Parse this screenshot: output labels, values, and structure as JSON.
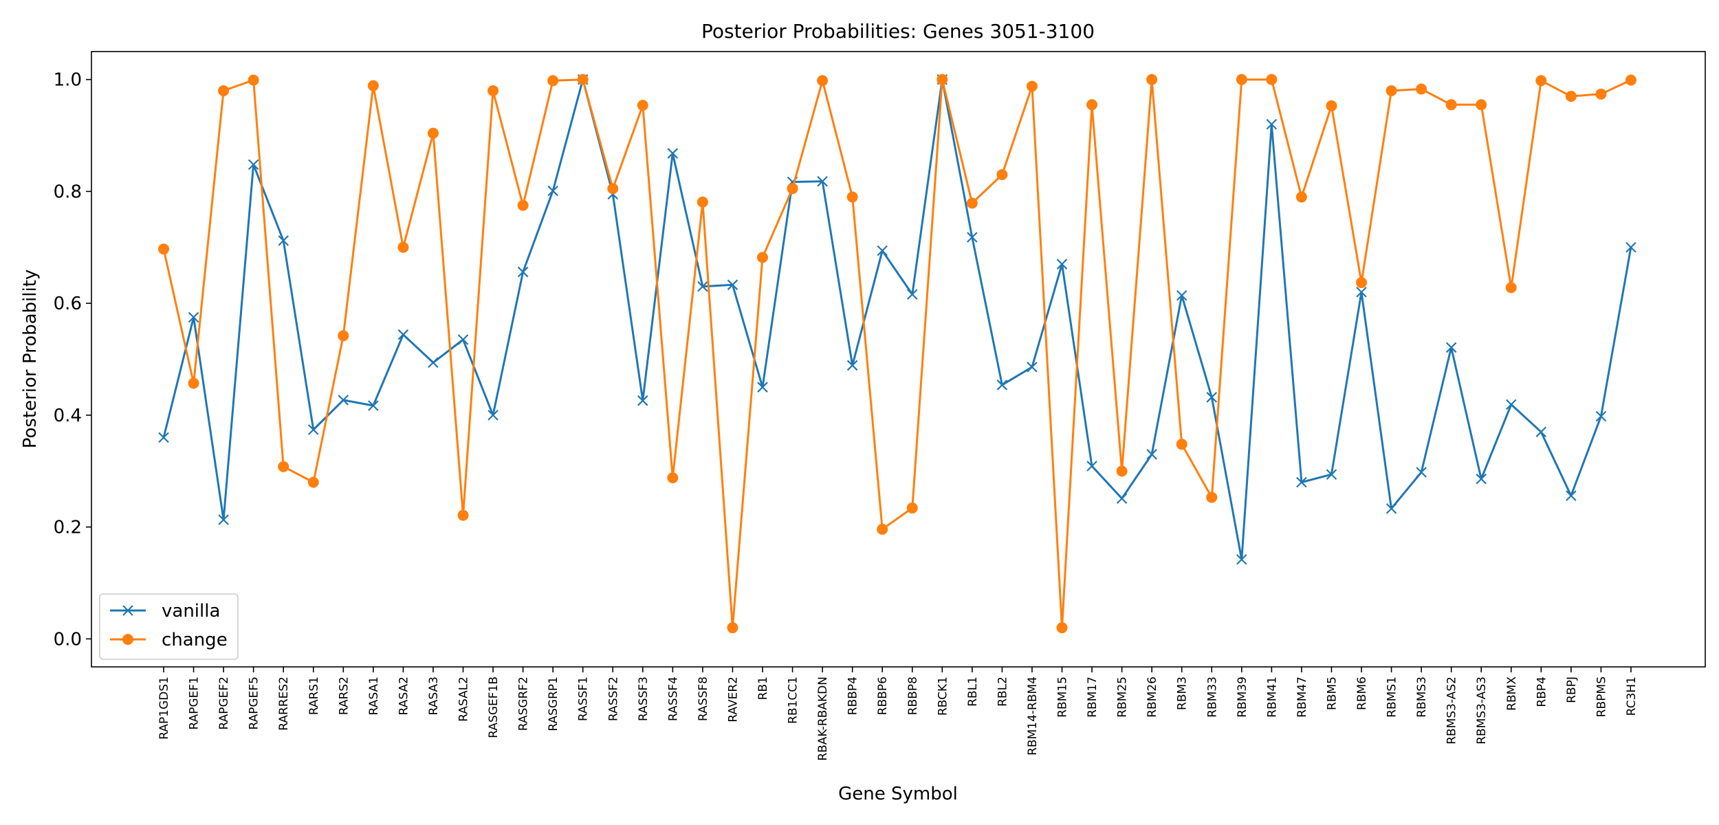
{
  "chart_data": {
    "type": "line",
    "title": "Posterior Probabilities: Genes 3051-3100",
    "xlabel": "Gene Symbol",
    "ylabel": "Posterior Probability",
    "ylim": [
      -0.05,
      1.05
    ],
    "yticks": [
      "0.0",
      "0.2",
      "0.4",
      "0.6",
      "0.8",
      "1.0"
    ],
    "grid": false,
    "legend_position": "lower-left",
    "categories": [
      "RAP1GDS1",
      "RAPGEF1",
      "RAPGEF2",
      "RAPGEF5",
      "RARRES2",
      "RARS1",
      "RARS2",
      "RASA1",
      "RASA2",
      "RASA3",
      "RASAL2",
      "RASGEF1B",
      "RASGRF2",
      "RASGRP1",
      "RASSF1",
      "RASSF2",
      "RASSF3",
      "RASSF4",
      "RASSF8",
      "RAVER2",
      "RB1",
      "RB1CC1",
      "RBAK-RBAKDN",
      "RBBP4",
      "RBBP6",
      "RBBP8",
      "RBCK1",
      "RBL1",
      "RBL2",
      "RBM14-RBM4",
      "RBM15",
      "RBM17",
      "RBM25",
      "RBM26",
      "RBM3",
      "RBM33",
      "RBM39",
      "RBM41",
      "RBM47",
      "RBM5",
      "RBM6",
      "RBMS1",
      "RBMS3",
      "RBMS3-AS2",
      "RBMS3-AS3",
      "RBMX",
      "RBP4",
      "RBPJ",
      "RBPMS",
      "RC3H1"
    ],
    "series": [
      {
        "name": "vanilla",
        "color": "#1f77b4",
        "marker": "x",
        "values": [
          0.36,
          0.575,
          0.213,
          0.848,
          0.712,
          0.374,
          0.427,
          0.417,
          0.544,
          0.494,
          0.535,
          0.4,
          0.656,
          0.801,
          1.0,
          0.795,
          0.426,
          0.868,
          0.63,
          0.633,
          0.45,
          0.817,
          0.818,
          0.489,
          0.694,
          0.616,
          1.0,
          0.718,
          0.454,
          0.486,
          0.67,
          0.309,
          0.251,
          0.33,
          0.614,
          0.432,
          0.142,
          0.92,
          0.28,
          0.294,
          0.62,
          0.233,
          0.298,
          0.521,
          0.286,
          0.419,
          0.37,
          0.256,
          0.398,
          0.7
        ]
      },
      {
        "name": "change",
        "color": "#ff7f0e",
        "marker": "o",
        "values": [
          0.697,
          0.457,
          0.98,
          0.999,
          0.308,
          0.28,
          0.542,
          0.989,
          0.7,
          0.904,
          0.221,
          0.98,
          0.775,
          0.998,
          1.0,
          0.805,
          0.954,
          0.288,
          0.781,
          0.02,
          0.682,
          0.805,
          0.998,
          0.79,
          0.196,
          0.234,
          1.0,
          0.779,
          0.83,
          0.988,
          0.02,
          0.955,
          0.3,
          1.0,
          0.348,
          0.253,
          1.0,
          1.0,
          0.79,
          0.953,
          0.637,
          0.98,
          0.983,
          0.955,
          0.955,
          0.628,
          0.998,
          0.97,
          0.974,
          0.999
        ]
      }
    ]
  }
}
